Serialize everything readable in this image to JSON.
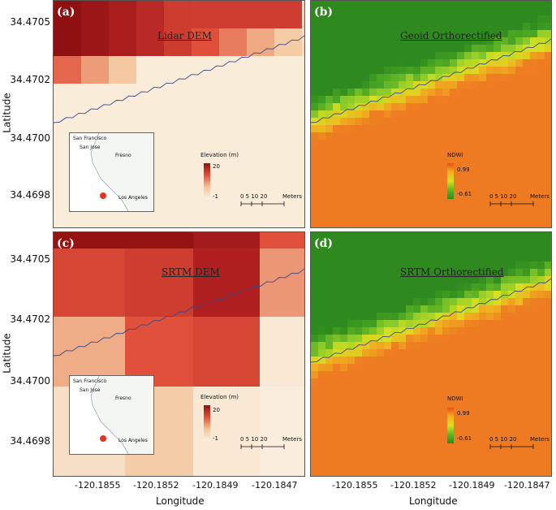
{
  "panels": {
    "a": {
      "label": "(a)",
      "title": "Lidar DEM",
      "legend_title": "Elevation (m)",
      "legend_max": "20",
      "legend_min": "-1"
    },
    "b": {
      "label": "(b)",
      "title": "Geoid Orthorectified",
      "legend_title": "NDWI",
      "legend_max": "0.99",
      "legend_min": "-0.61"
    },
    "c": {
      "label": "(c)",
      "title": "SRTM DEM",
      "legend_title": "Elevation (m)",
      "legend_max": "20",
      "legend_min": "-1"
    },
    "d": {
      "label": "(d)",
      "title": "SRTM Orthorectified",
      "legend_title": "NDWI",
      "legend_max": "0.99",
      "legend_min": "-0.61"
    }
  },
  "axes": {
    "ylabel": "Latitude",
    "xlabel": "Longitude",
    "y_ticks": [
      "34.4705",
      "34.4702",
      "34.4700",
      "34.4698"
    ],
    "x_ticks": [
      "-120.1855",
      "-120.1852",
      "-120.1849",
      "-120.1847"
    ]
  },
  "scale": {
    "ticks": "0   5  10      20",
    "unit": "Meters"
  },
  "inset": {
    "cities": [
      "San Francisco",
      "San Jose",
      "Fresno",
      "Los Angeles"
    ]
  },
  "colors": {
    "dem_high": "#8e1010",
    "dem_low": "#faf1e2",
    "ndwi_high": "#ee8020",
    "ndwi_low": "#2e8a1e",
    "inset_marker": "#e8321e"
  }
}
